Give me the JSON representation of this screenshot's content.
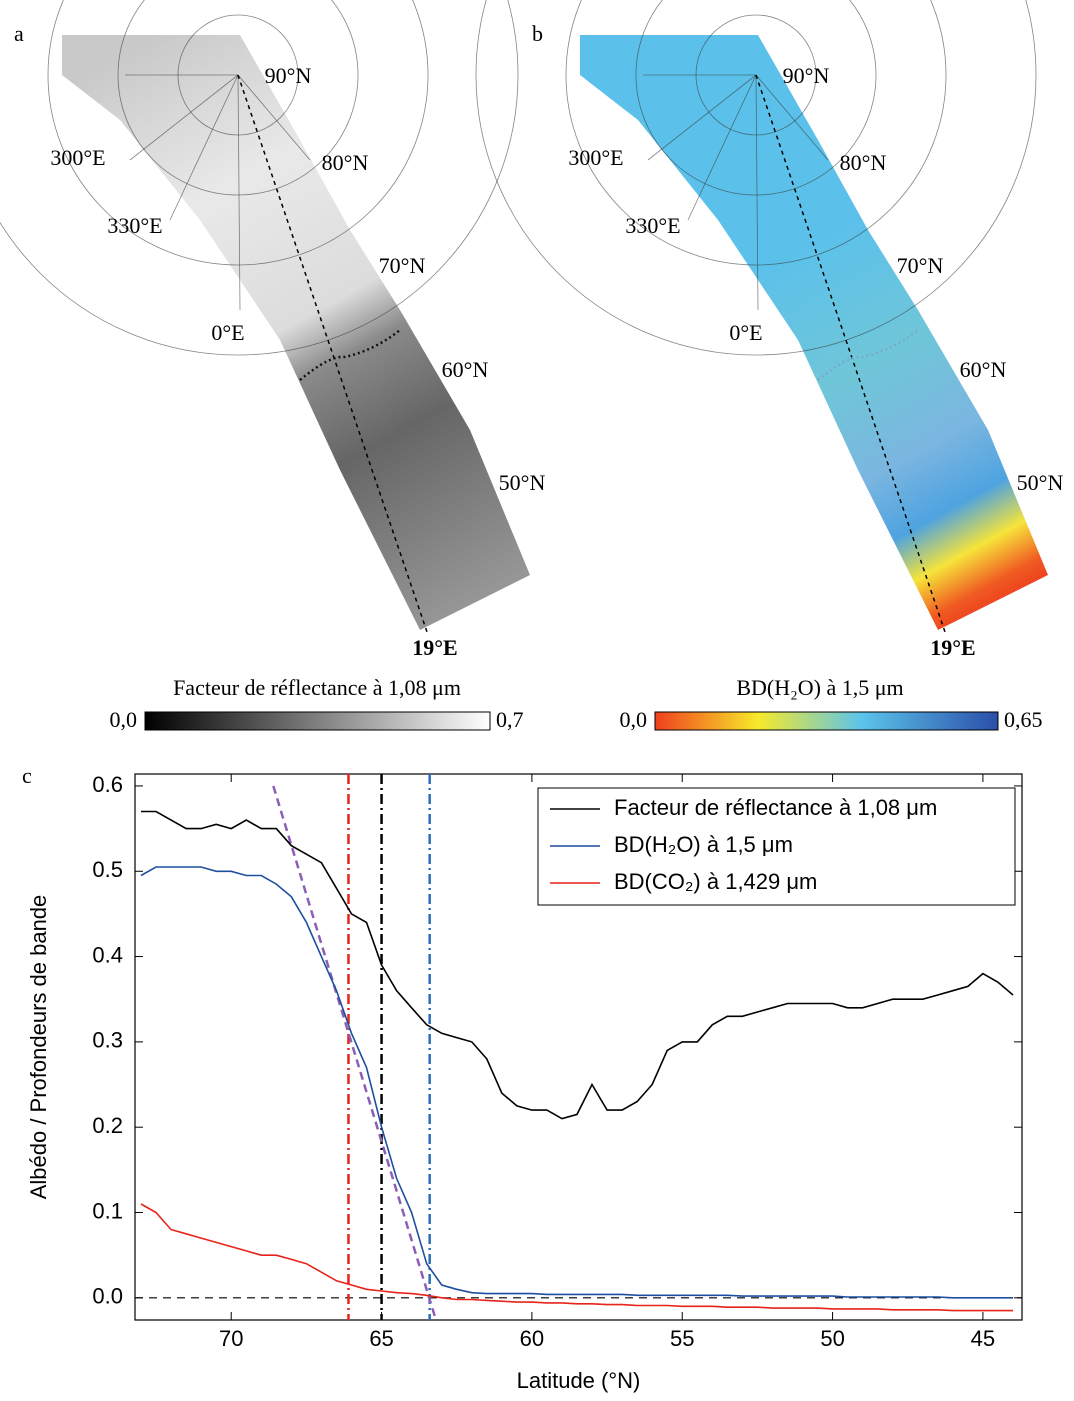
{
  "panels": [
    {
      "label": "a",
      "graticule": [
        "90°N",
        "80°N",
        "70°N",
        "60°N",
        "50°N",
        "300°E",
        "330°E",
        "0°E",
        "19°E"
      ],
      "colorbar": {
        "title": "Facteur de réflectance à 1,08 μm",
        "min": "0,0",
        "max": "0,7"
      }
    },
    {
      "label": "b",
      "graticule": [
        "90°N",
        "80°N",
        "70°N",
        "60°N",
        "50°N",
        "300°E",
        "330°E",
        "0°E",
        "19°E"
      ],
      "colorbar": {
        "title": "BD(H₂O) à 1,5 μm",
        "min": "0,0",
        "max": "0,65"
      }
    }
  ],
  "chart_label": "c",
  "chart_data": {
    "type": "line",
    "x_label": "Latitude (°N)",
    "y_label": "Albédo / Profondeurs de bande",
    "xlim": [
      73.2,
      43.7
    ],
    "xticks": [
      70,
      65,
      60,
      55,
      50,
      45
    ],
    "ylim": [
      -0.026,
      0.614
    ],
    "yticks": [
      {
        "value": 0,
        "label": "0.0"
      },
      0.1,
      0.2,
      0.3,
      0.4,
      0.5,
      0.6
    ],
    "x": [
      73,
      72.5,
      72,
      71.5,
      71,
      70.5,
      70,
      69.5,
      69,
      68.5,
      68,
      67.5,
      67,
      66.5,
      66,
      65.5,
      65,
      64.5,
      64,
      63.5,
      63,
      62.5,
      62,
      61.5,
      61,
      60.5,
      60,
      59.5,
      59,
      58.5,
      58,
      57.5,
      57,
      56.5,
      56,
      55.5,
      55,
      54.5,
      54,
      53.5,
      53,
      52.5,
      52,
      51.5,
      51,
      50.5,
      50,
      49.5,
      49,
      48.5,
      48,
      47.5,
      47,
      46.5,
      46,
      45.5,
      45,
      44.5,
      44
    ],
    "series": [
      {
        "name": "Facteur de réflectance à 1,08 μm",
        "color": "#000000",
        "values": [
          0.57,
          0.57,
          0.56,
          0.55,
          0.55,
          0.555,
          0.55,
          0.56,
          0.55,
          0.55,
          0.53,
          0.52,
          0.51,
          0.48,
          0.45,
          0.44,
          0.39,
          0.36,
          0.34,
          0.32,
          0.31,
          0.305,
          0.3,
          0.28,
          0.24,
          0.225,
          0.22,
          0.22,
          0.21,
          0.215,
          0.25,
          0.22,
          0.22,
          0.23,
          0.25,
          0.29,
          0.3,
          0.3,
          0.32,
          0.33,
          0.33,
          0.335,
          0.34,
          0.345,
          0.345,
          0.345,
          0.345,
          0.34,
          0.34,
          0.345,
          0.35,
          0.35,
          0.35,
          0.355,
          0.36,
          0.365,
          0.38,
          0.37,
          0.355
        ]
      },
      {
        "name": "BD(H₂O) à 1,5 μm",
        "color": "#1f4fa0",
        "values": [
          0.495,
          0.505,
          0.505,
          0.505,
          0.505,
          0.5,
          0.5,
          0.495,
          0.495,
          0.485,
          0.47,
          0.44,
          0.4,
          0.36,
          0.31,
          0.27,
          0.2,
          0.14,
          0.1,
          0.04,
          0.015,
          0.01,
          0.006,
          0.005,
          0.005,
          0.005,
          0.005,
          0.004,
          0.004,
          0.004,
          0.004,
          0.004,
          0.004,
          0.003,
          0.003,
          0.003,
          0.003,
          0.003,
          0.003,
          0.003,
          0.002,
          0.002,
          0.002,
          0.002,
          0.002,
          0.002,
          0.002,
          0.001,
          0.001,
          0.001,
          0.001,
          0.001,
          0.001,
          0.001,
          0.0,
          0.0,
          0.0,
          0.0,
          0.0
        ]
      },
      {
        "name": "BD(CO₂) à 1,429 μm",
        "color": "#e8231a",
        "values": [
          0.11,
          0.1,
          0.08,
          0.075,
          0.07,
          0.065,
          0.06,
          0.055,
          0.05,
          0.05,
          0.045,
          0.04,
          0.03,
          0.02,
          0.015,
          0.01,
          0.008,
          0.006,
          0.005,
          0.003,
          0.0,
          -0.002,
          -0.002,
          -0.003,
          -0.004,
          -0.005,
          -0.005,
          -0.006,
          -0.006,
          -0.007,
          -0.007,
          -0.008,
          -0.008,
          -0.009,
          -0.009,
          -0.009,
          -0.01,
          -0.01,
          -0.01,
          -0.011,
          -0.011,
          -0.011,
          -0.012,
          -0.012,
          -0.012,
          -0.012,
          -0.013,
          -0.013,
          -0.013,
          -0.013,
          -0.014,
          -0.014,
          -0.014,
          -0.014,
          -0.015,
          -0.015,
          -0.015,
          -0.015,
          -0.015
        ]
      }
    ],
    "vlines": [
      {
        "x": 66.1,
        "color": "#e8231a"
      },
      {
        "x": 65.0,
        "color": "#000000"
      },
      {
        "x": 63.4,
        "color": "#2a6fb5"
      }
    ],
    "hline": 0,
    "trend": {
      "x": [
        68.6,
        63.2
      ],
      "y": [
        0.6,
        -0.025
      ],
      "color": "#8a5fb5"
    },
    "legend": "upper right"
  }
}
